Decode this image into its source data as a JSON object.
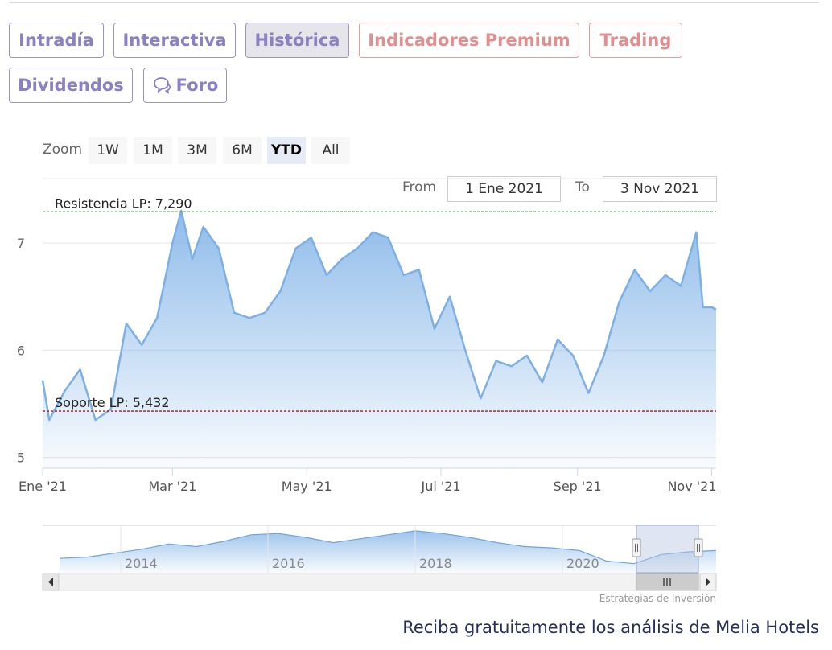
{
  "tabs": [
    {
      "label": "Intradía"
    },
    {
      "label": "Interactiva"
    },
    {
      "label": "Histórica"
    },
    {
      "label": "Indicadores Premium"
    },
    {
      "label": "Trading"
    },
    {
      "label": "Dividendos"
    },
    {
      "label": "Foro",
      "icon": "chat-bubbles-icon"
    }
  ],
  "range_selector": {
    "zoom_label": "Zoom",
    "buttons": [
      "1W",
      "1M",
      "3M",
      "6M",
      "YTD",
      "All"
    ],
    "selected": "YTD"
  },
  "date_range": {
    "from_label": "From",
    "from_value": "1 Ene 2021",
    "to_label": "To",
    "to_value": "3 Nov 2021"
  },
  "chart_data": {
    "type": "area",
    "title": "",
    "xlabel": "",
    "ylabel": "",
    "x_ticks": [
      "Ene '21",
      "Mar '21",
      "May '21",
      "Jul '21",
      "Sep '21",
      "Nov '21"
    ],
    "y_ticks": [
      "5",
      "6",
      "7"
    ],
    "ylim": [
      4.9,
      7.6
    ],
    "grid": true,
    "series": [
      {
        "x": [
          "2021-01-01",
          "2021-01-04",
          "2021-01-11",
          "2021-01-18",
          "2021-01-25",
          "2021-02-01",
          "2021-02-08",
          "2021-02-15",
          "2021-02-22",
          "2021-03-01",
          "2021-03-05",
          "2021-03-10",
          "2021-03-15",
          "2021-03-22",
          "2021-03-29",
          "2021-04-05",
          "2021-04-12",
          "2021-04-19",
          "2021-04-26",
          "2021-05-03",
          "2021-05-10",
          "2021-05-17",
          "2021-05-24",
          "2021-05-31",
          "2021-06-07",
          "2021-06-14",
          "2021-06-21",
          "2021-06-28",
          "2021-07-05",
          "2021-07-12",
          "2021-07-19",
          "2021-07-26",
          "2021-08-02",
          "2021-08-09",
          "2021-08-16",
          "2021-08-23",
          "2021-08-30",
          "2021-09-06",
          "2021-09-13",
          "2021-09-20",
          "2021-09-27",
          "2021-10-04",
          "2021-10-11",
          "2021-10-18",
          "2021-10-25",
          "2021-10-28",
          "2021-11-01",
          "2021-11-03"
        ],
        "values": [
          5.72,
          5.35,
          5.62,
          5.82,
          5.35,
          5.45,
          6.25,
          6.05,
          6.3,
          7.0,
          7.3,
          6.85,
          7.15,
          6.95,
          6.35,
          6.3,
          6.35,
          6.55,
          6.95,
          7.05,
          6.7,
          6.85,
          6.95,
          7.1,
          7.05,
          6.7,
          6.75,
          6.2,
          6.5,
          6.0,
          5.55,
          5.9,
          5.85,
          5.95,
          5.7,
          6.1,
          5.95,
          5.6,
          5.95,
          6.45,
          6.75,
          6.55,
          6.7,
          6.6,
          7.1,
          6.4,
          6.4,
          6.38
        ]
      }
    ],
    "annotations": [
      {
        "label": "Resistencia LP: 7,290",
        "value": 7.29,
        "color": "#2e7d32"
      },
      {
        "label": "Soporte LP: 5,432",
        "value": 5.432,
        "color": "#9e1b1b"
      }
    ],
    "navigator": {
      "x_ticks": [
        "2014",
        "2016",
        "2018",
        "2020"
      ],
      "values": [
        5.4,
        5.5,
        5.8,
        6.1,
        6.5,
        6.3,
        6.7,
        7.2,
        7.3,
        7.0,
        6.6,
        6.9,
        7.2,
        7.5,
        7.3,
        7.0,
        6.6,
        6.3,
        6.2,
        6.0,
        5.2,
        5.0,
        5.7,
        5.9,
        6.0
      ]
    },
    "credit": "Estrategias de Inversión"
  },
  "colors": {
    "series_line": "#7cb0e6",
    "area_top": "#7cb0e6",
    "grid": "#e6e6e6",
    "tab_text": "#8a80c2",
    "tab_premium": "#e08e8e",
    "navigator_mask": "#b8c5e0"
  },
  "footer_text": "Reciba gratuitamente los análisis de Melia Hotels"
}
